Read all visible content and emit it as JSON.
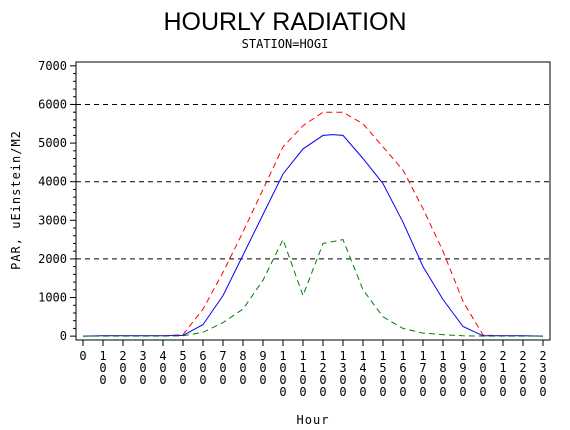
{
  "chart_data": {
    "type": "line",
    "title": "HOURLY RADIATION",
    "subtitle": "STATION=HOGI",
    "xlabel": "Hour",
    "ylabel": "PAR, uEinstein/M2",
    "x": [
      0,
      100,
      200,
      300,
      400,
      500,
      600,
      700,
      800,
      900,
      1000,
      1100,
      1200,
      1300,
      1400,
      1500,
      1600,
      1700,
      1800,
      1900,
      2000,
      2100,
      2200,
      2300
    ],
    "xticks": [
      "0",
      "100",
      "200",
      "300",
      "400",
      "500",
      "600",
      "700",
      "800",
      "900",
      "1000",
      "1100",
      "1200",
      "1300",
      "1400",
      "1500",
      "1600",
      "1700",
      "1800",
      "1900",
      "2000",
      "2100",
      "2200",
      "2300"
    ],
    "xlim": [
      0,
      2300
    ],
    "ylim": [
      -100,
      7100
    ],
    "yticks": [
      0,
      1000,
      2000,
      3000,
      4000,
      5000,
      6000,
      7000
    ],
    "reference_lines": [
      2000,
      4000,
      6000
    ],
    "series": [
      {
        "color": "#ff0000",
        "style": "dashed",
        "points": [
          [
            0,
            0
          ],
          [
            100,
            10
          ],
          [
            200,
            10
          ],
          [
            300,
            10
          ],
          [
            400,
            10
          ],
          [
            500,
            40
          ],
          [
            600,
            700
          ],
          [
            700,
            1650
          ],
          [
            800,
            2700
          ],
          [
            900,
            3800
          ],
          [
            1000,
            4900
          ],
          [
            1100,
            5450
          ],
          [
            1200,
            5800
          ],
          [
            1300,
            5800
          ],
          [
            1400,
            5500
          ],
          [
            1500,
            4900
          ],
          [
            1600,
            4300
          ],
          [
            1700,
            3300
          ],
          [
            1800,
            2200
          ],
          [
            1900,
            900
          ],
          [
            2000,
            30
          ],
          [
            2100,
            10
          ],
          [
            2200,
            10
          ],
          [
            2300,
            0
          ]
        ]
      },
      {
        "color": "#0000ff",
        "style": "solid",
        "points": [
          [
            0,
            0
          ],
          [
            100,
            10
          ],
          [
            200,
            10
          ],
          [
            300,
            10
          ],
          [
            400,
            10
          ],
          [
            500,
            20
          ],
          [
            600,
            300
          ],
          [
            700,
            1050
          ],
          [
            800,
            2100
          ],
          [
            900,
            3150
          ],
          [
            1000,
            4200
          ],
          [
            1100,
            4850
          ],
          [
            1200,
            5200
          ],
          [
            1250,
            5220
          ],
          [
            1300,
            5200
          ],
          [
            1400,
            4600
          ],
          [
            1500,
            3950
          ],
          [
            1600,
            2950
          ],
          [
            1700,
            1800
          ],
          [
            1800,
            950
          ],
          [
            1900,
            250
          ],
          [
            2000,
            10
          ],
          [
            2100,
            10
          ],
          [
            2200,
            10
          ],
          [
            2300,
            0
          ]
        ]
      },
      {
        "color": "#008000",
        "style": "dashed",
        "points": [
          [
            0,
            0
          ],
          [
            100,
            0
          ],
          [
            200,
            0
          ],
          [
            300,
            0
          ],
          [
            400,
            0
          ],
          [
            500,
            10
          ],
          [
            600,
            100
          ],
          [
            700,
            350
          ],
          [
            800,
            700
          ],
          [
            900,
            1450
          ],
          [
            1000,
            2500
          ],
          [
            1100,
            1050
          ],
          [
            1200,
            2400
          ],
          [
            1300,
            2500
          ],
          [
            1400,
            1200
          ],
          [
            1500,
            500
          ],
          [
            1600,
            200
          ],
          [
            1700,
            80
          ],
          [
            1800,
            40
          ],
          [
            1900,
            10
          ],
          [
            2000,
            0
          ],
          [
            2100,
            0
          ],
          [
            2200,
            0
          ],
          [
            2300,
            0
          ]
        ]
      }
    ],
    "grid": false
  }
}
